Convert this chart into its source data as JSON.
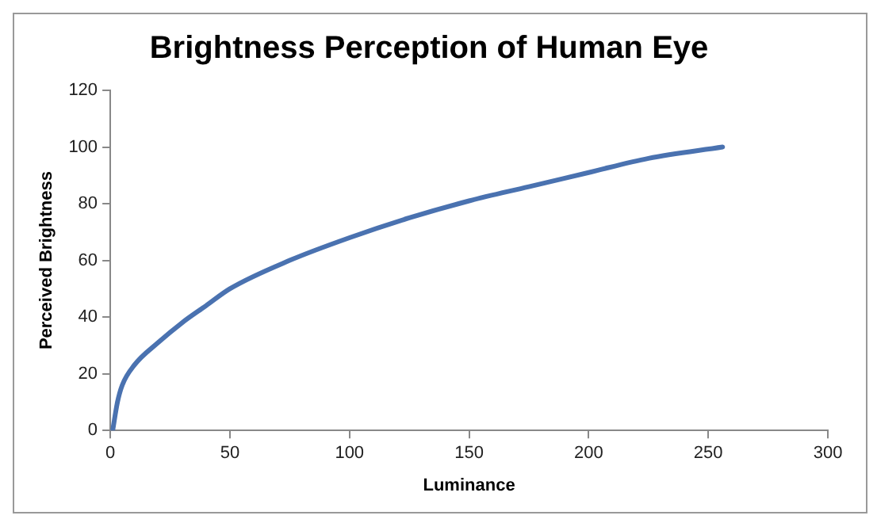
{
  "chart_data": {
    "type": "line",
    "title": "Brightness Perception of Human Eye",
    "xlabel": "Luminance",
    "ylabel": "Perceived Brightness",
    "x": [
      1,
      3,
      5,
      10,
      20,
      30,
      40,
      50,
      75,
      100,
      125,
      150,
      175,
      200,
      225,
      256
    ],
    "series": [
      {
        "color": "#4a72b0",
        "values": [
          0,
          10,
          16,
          23,
          31,
          38,
          44,
          50,
          60,
          68,
          75,
          81,
          86,
          91,
          96,
          100
        ]
      }
    ],
    "xlim": [
      0,
      300
    ],
    "xticks": [
      0,
      50,
      100,
      150,
      200,
      250,
      300
    ],
    "ylim": [
      0,
      120
    ],
    "yticks": [
      0,
      20,
      40,
      60,
      80,
      100,
      120
    ],
    "grid": false,
    "legend": false,
    "marker": "none",
    "line_style": "solid"
  }
}
